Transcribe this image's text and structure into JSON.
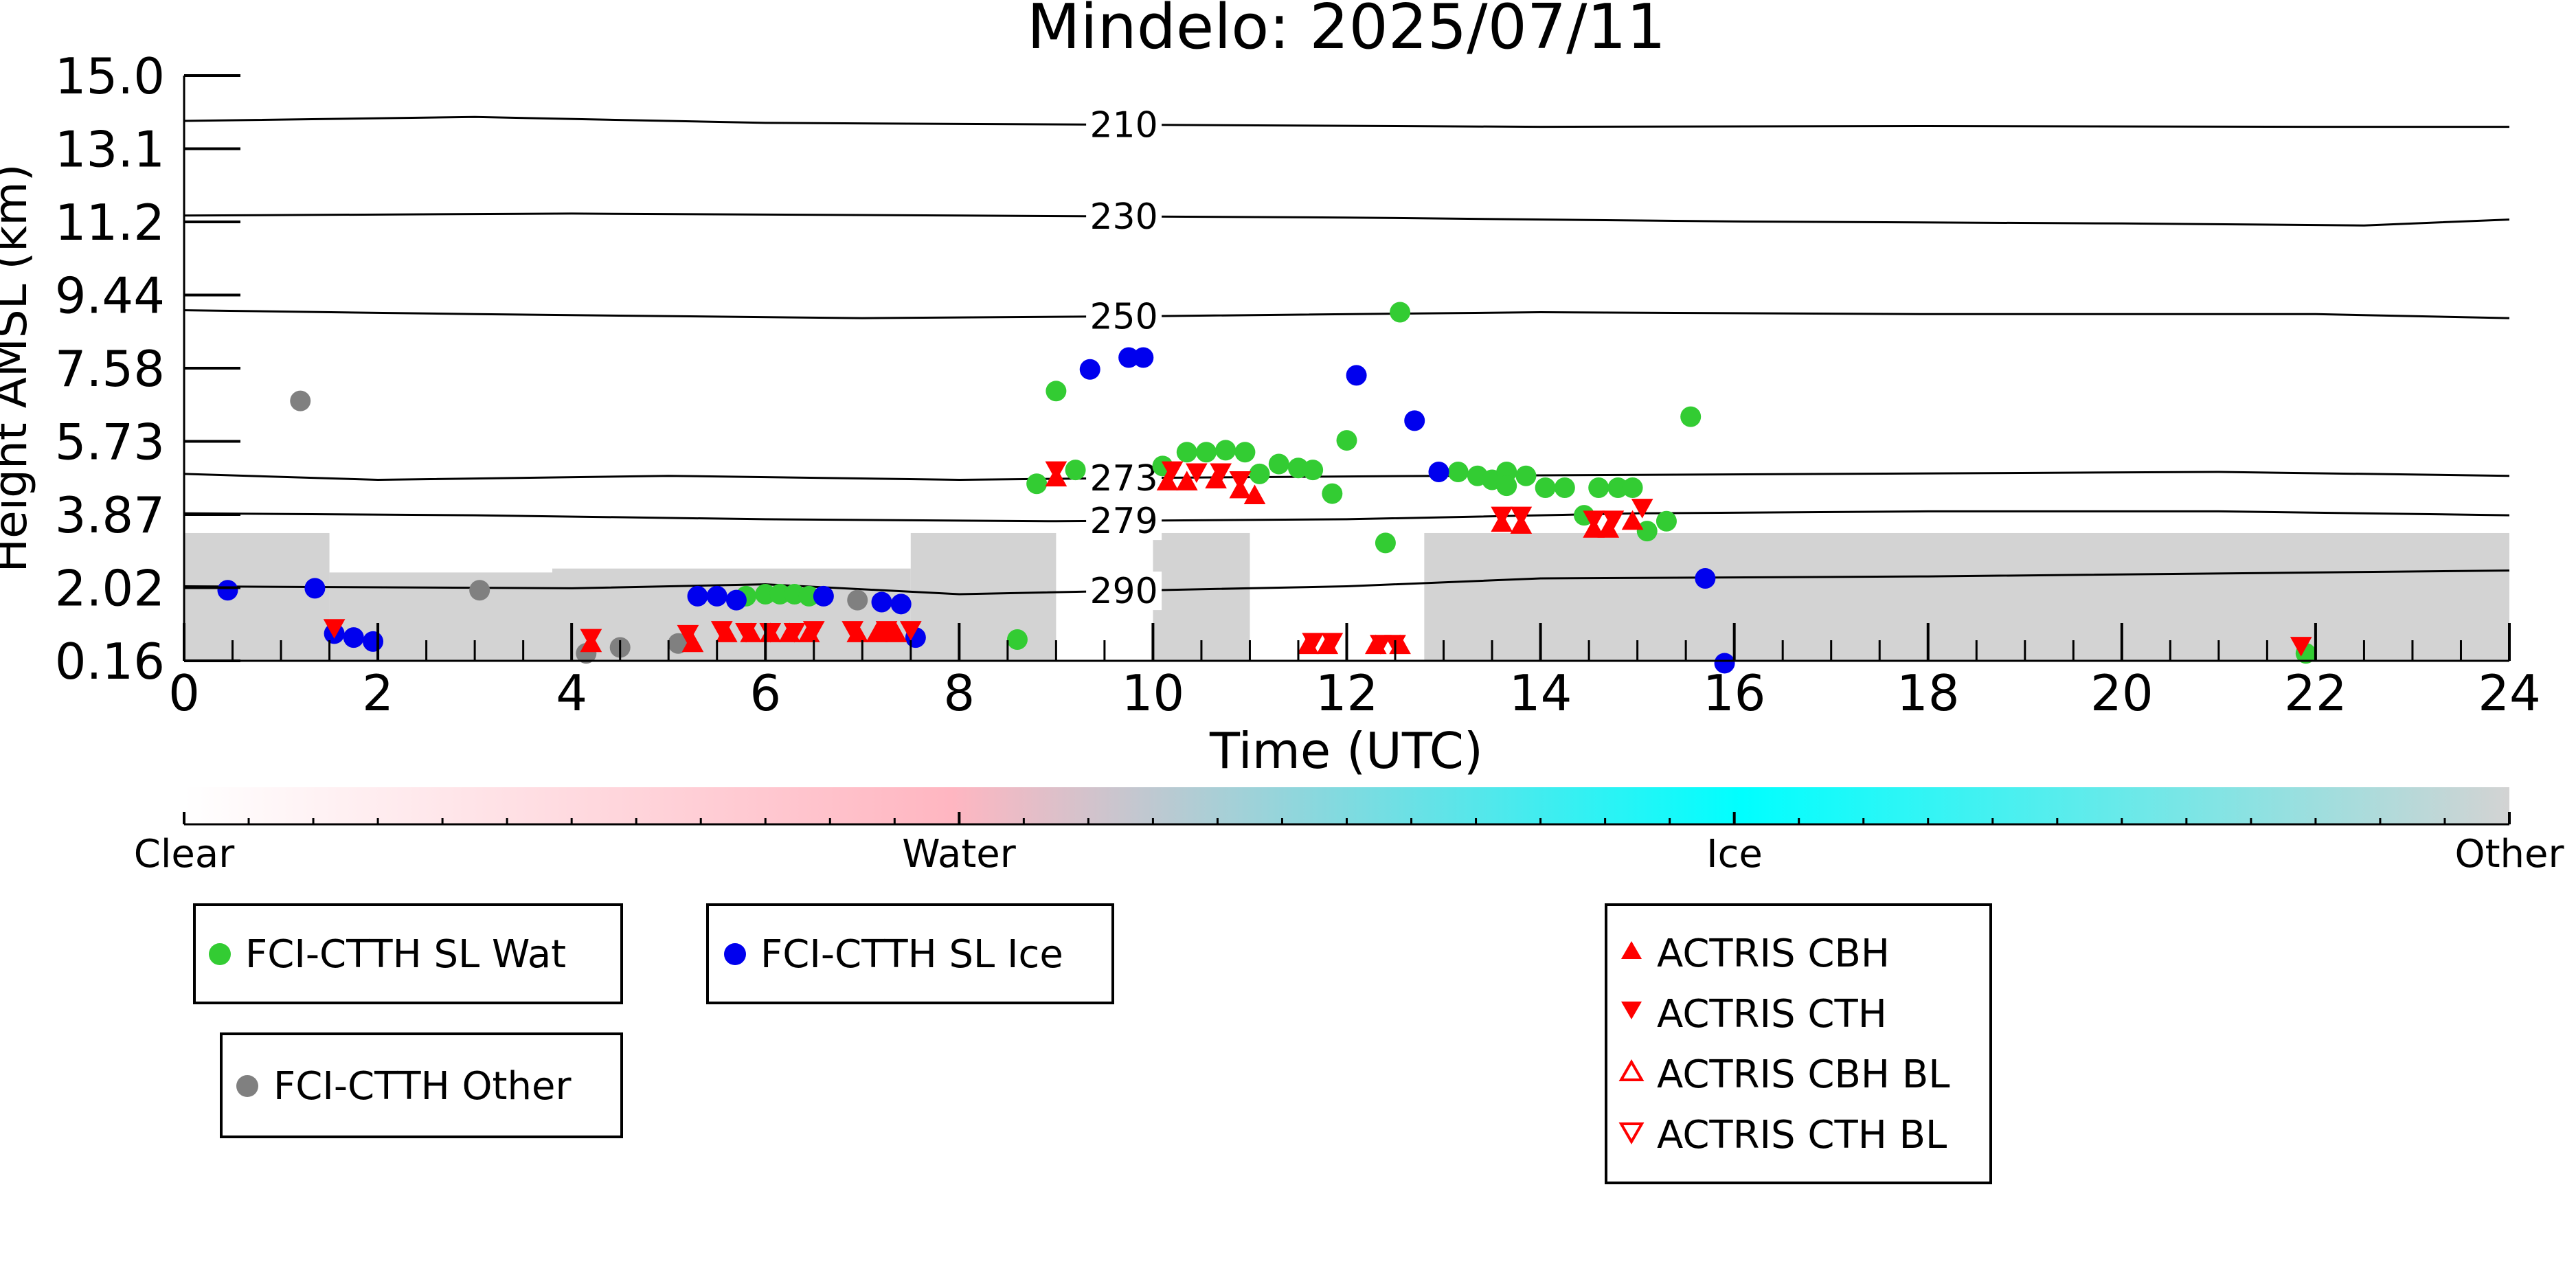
{
  "chart_data": {
    "type": "scatter",
    "title": "Mindelo: 2025/07/11",
    "xlabel": "Time (UTC)",
    "ylabel": "Height AMSL (km)",
    "xlim": [
      0,
      24
    ],
    "ylim": [
      0.16,
      15.0
    ],
    "x_ticks": [
      "0",
      "2",
      "4",
      "6",
      "8",
      "10",
      "12",
      "14",
      "16",
      "18",
      "20",
      "22",
      "24"
    ],
    "y_ticks": [
      "0.16",
      "2.02",
      "3.87",
      "5.73",
      "7.58",
      "9.44",
      "11.2",
      "13.1",
      "15.0"
    ],
    "isotherms": [
      {
        "label": "210",
        "heights": [
          [
            0,
            13.85
          ],
          [
            3,
            13.95
          ],
          [
            6,
            13.8
          ],
          [
            10,
            13.75
          ],
          [
            14,
            13.7
          ],
          [
            18,
            13.72
          ],
          [
            22,
            13.7
          ],
          [
            24,
            13.7
          ]
        ]
      },
      {
        "label": "230",
        "heights": [
          [
            0,
            11.45
          ],
          [
            4,
            11.5
          ],
          [
            8,
            11.45
          ],
          [
            12,
            11.4
          ],
          [
            16,
            11.3
          ],
          [
            20,
            11.25
          ],
          [
            22.5,
            11.2
          ],
          [
            24,
            11.35
          ]
        ]
      },
      {
        "label": "250",
        "heights": [
          [
            0,
            9.05
          ],
          [
            3,
            8.95
          ],
          [
            7,
            8.85
          ],
          [
            10,
            8.9
          ],
          [
            14,
            9.0
          ],
          [
            18,
            8.95
          ],
          [
            22,
            8.95
          ],
          [
            24,
            8.85
          ]
        ]
      },
      {
        "label": "273",
        "heights": [
          [
            0,
            4.9
          ],
          [
            2,
            4.75
          ],
          [
            5,
            4.85
          ],
          [
            8,
            4.75
          ],
          [
            10,
            4.8
          ],
          [
            13,
            4.85
          ],
          [
            17,
            4.9
          ],
          [
            21,
            4.95
          ],
          [
            24,
            4.85
          ]
        ]
      },
      {
        "label": "279",
        "heights": [
          [
            0,
            3.9
          ],
          [
            3,
            3.85
          ],
          [
            6,
            3.75
          ],
          [
            9,
            3.7
          ],
          [
            12,
            3.75
          ],
          [
            15,
            3.9
          ],
          [
            18,
            3.95
          ],
          [
            21,
            3.95
          ],
          [
            24,
            3.85
          ]
        ]
      },
      {
        "label": "290",
        "heights": [
          [
            0,
            2.05
          ],
          [
            4,
            2.0
          ],
          [
            6,
            2.1
          ],
          [
            8,
            1.85
          ],
          [
            10,
            1.95
          ],
          [
            12,
            2.05
          ],
          [
            14,
            2.25
          ],
          [
            18,
            2.3
          ],
          [
            22,
            2.4
          ],
          [
            24,
            2.45
          ]
        ]
      }
    ],
    "cloud_phase_background": [
      {
        "phase": "Other",
        "x": [
          0,
          1.5
        ],
        "top": 3.4
      },
      {
        "phase": "Other",
        "x": [
          1.5,
          3.8
        ],
        "top": 2.4
      },
      {
        "phase": "Other",
        "x": [
          3.8,
          7.5
        ],
        "top": 2.5
      },
      {
        "phase": "Other",
        "x": [
          7.5,
          9.0
        ],
        "top": 3.4
      },
      {
        "phase": "Other",
        "x": [
          10.0,
          11.0
        ],
        "top": 3.4
      },
      {
        "phase": "Other",
        "x": [
          12.8,
          24.0
        ],
        "top": 3.4
      }
    ],
    "series": [
      {
        "name": "FCI-CTTH SL Wat",
        "color": "#33cc33",
        "marker": "circle",
        "points": [
          [
            5.8,
            1.8
          ],
          [
            6.0,
            1.85
          ],
          [
            6.15,
            1.85
          ],
          [
            6.3,
            1.85
          ],
          [
            6.45,
            1.8
          ],
          [
            8.6,
            0.7
          ],
          [
            8.8,
            4.65
          ],
          [
            9.0,
            7.0
          ],
          [
            9.2,
            5.0
          ],
          [
            10.1,
            5.1
          ],
          [
            10.35,
            5.45
          ],
          [
            10.55,
            5.45
          ],
          [
            10.75,
            5.5
          ],
          [
            10.95,
            5.45
          ],
          [
            11.1,
            4.9
          ],
          [
            11.3,
            5.15
          ],
          [
            11.5,
            5.05
          ],
          [
            11.65,
            5.0
          ],
          [
            11.85,
            4.4
          ],
          [
            12.0,
            5.75
          ],
          [
            12.4,
            3.15
          ],
          [
            12.55,
            9.0
          ],
          [
            13.15,
            4.95
          ],
          [
            13.35,
            4.85
          ],
          [
            13.5,
            4.75
          ],
          [
            13.65,
            4.95
          ],
          [
            13.85,
            4.85
          ],
          [
            13.65,
            4.6
          ],
          [
            14.05,
            4.55
          ],
          [
            14.25,
            4.55
          ],
          [
            14.45,
            3.85
          ],
          [
            14.6,
            4.55
          ],
          [
            14.8,
            4.55
          ],
          [
            14.95,
            4.55
          ],
          [
            15.1,
            3.45
          ],
          [
            15.3,
            3.7
          ],
          [
            15.55,
            6.35
          ],
          [
            21.9,
            0.35
          ]
        ]
      },
      {
        "name": "FCI-CTTH SL Ice",
        "color": "#0000ee",
        "marker": "circle",
        "points": [
          [
            0.45,
            1.95
          ],
          [
            1.35,
            2.0
          ],
          [
            1.55,
            0.85
          ],
          [
            1.75,
            0.75
          ],
          [
            1.95,
            0.65
          ],
          [
            5.3,
            1.8
          ],
          [
            5.5,
            1.8
          ],
          [
            5.7,
            1.7
          ],
          [
            6.6,
            1.8
          ],
          [
            7.2,
            1.65
          ],
          [
            7.4,
            1.6
          ],
          [
            7.55,
            0.75
          ],
          [
            9.35,
            7.55
          ],
          [
            9.75,
            7.85
          ],
          [
            9.9,
            7.85
          ],
          [
            12.1,
            7.4
          ],
          [
            12.7,
            6.25
          ],
          [
            12.95,
            4.95
          ],
          [
            15.7,
            2.25
          ],
          [
            15.9,
            0.1
          ]
        ]
      },
      {
        "name": "FCI-CTTH Other",
        "color": "#808080",
        "marker": "circle",
        "points": [
          [
            1.2,
            6.75
          ],
          [
            3.05,
            1.95
          ],
          [
            4.15,
            0.35
          ],
          [
            4.5,
            0.5
          ],
          [
            5.1,
            0.6
          ],
          [
            6.95,
            1.7
          ]
        ]
      },
      {
        "name": "ACTRIS CBH",
        "color": "#ff0000",
        "marker": "triangle-up",
        "points": [
          [
            4.2,
            0.6
          ],
          [
            5.25,
            0.6
          ],
          [
            5.6,
            0.85
          ],
          [
            5.85,
            0.85
          ],
          [
            6.05,
            0.85
          ],
          [
            6.25,
            0.85
          ],
          [
            6.45,
            0.85
          ],
          [
            6.95,
            0.85
          ],
          [
            7.15,
            0.85
          ],
          [
            7.35,
            0.85
          ],
          [
            9.0,
            4.8
          ],
          [
            10.15,
            4.7
          ],
          [
            10.35,
            4.7
          ],
          [
            10.65,
            4.75
          ],
          [
            10.9,
            4.5
          ],
          [
            11.05,
            4.35
          ],
          [
            11.6,
            0.55
          ],
          [
            11.8,
            0.55
          ],
          [
            12.3,
            0.55
          ],
          [
            12.55,
            0.55
          ],
          [
            13.6,
            3.65
          ],
          [
            13.8,
            3.6
          ],
          [
            14.55,
            3.5
          ],
          [
            14.7,
            3.5
          ],
          [
            14.95,
            3.7
          ]
        ]
      },
      {
        "name": "ACTRIS CTH",
        "color": "#ff0000",
        "marker": "triangle-down",
        "points": [
          [
            1.55,
            1.0
          ],
          [
            4.2,
            0.75
          ],
          [
            5.2,
            0.85
          ],
          [
            5.55,
            0.95
          ],
          [
            5.8,
            0.9
          ],
          [
            6.05,
            0.9
          ],
          [
            6.3,
            0.9
          ],
          [
            6.5,
            0.95
          ],
          [
            6.9,
            0.95
          ],
          [
            7.25,
            0.95
          ],
          [
            7.5,
            0.95
          ],
          [
            9.0,
            5.0
          ],
          [
            10.2,
            5.0
          ],
          [
            10.45,
            4.95
          ],
          [
            10.7,
            4.95
          ],
          [
            10.9,
            4.75
          ],
          [
            11.65,
            0.65
          ],
          [
            11.85,
            0.65
          ],
          [
            12.35,
            0.6
          ],
          [
            12.5,
            0.6
          ],
          [
            13.6,
            3.85
          ],
          [
            13.8,
            3.85
          ],
          [
            14.55,
            3.75
          ],
          [
            14.75,
            3.75
          ],
          [
            15.05,
            4.05
          ],
          [
            21.85,
            0.55
          ]
        ]
      },
      {
        "name": "ACTRIS CBH BL",
        "color": "#ff0000",
        "marker": "triangle-up-open",
        "points": []
      },
      {
        "name": "ACTRIS CTH BL",
        "color": "#ff0000",
        "marker": "triangle-down-open",
        "points": []
      }
    ],
    "colorbar": {
      "labels": [
        "Clear",
        "Water",
        "Ice",
        "Other"
      ],
      "colors": [
        "#ffffff",
        "#ffb6c1",
        "#00ffff",
        "#d3d3d3"
      ]
    },
    "legends": [
      {
        "entries": [
          "FCI-CTTH SL Wat"
        ]
      },
      {
        "entries": [
          "FCI-CTTH SL Ice"
        ]
      },
      {
        "entries": [
          "FCI-CTTH Other"
        ]
      },
      {
        "entries": [
          "ACTRIS CBH",
          "ACTRIS CTH",
          "ACTRIS CBH BL",
          "ACTRIS CTH BL"
        ]
      }
    ]
  }
}
